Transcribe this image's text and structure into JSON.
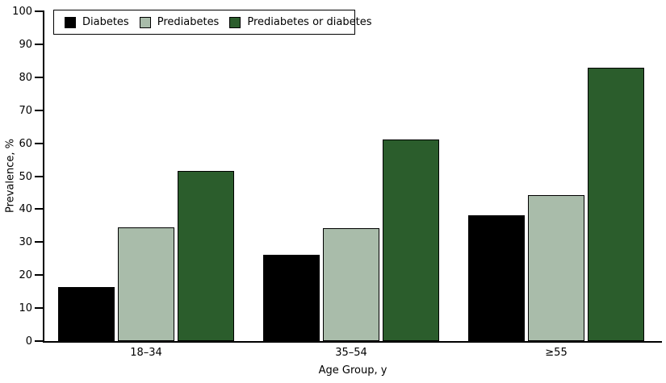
{
  "chart_data": {
    "type": "bar",
    "title": "",
    "xlabel": "Age Group, y",
    "ylabel": "Prevalence, %",
    "ylim": [
      0,
      100
    ],
    "yticks": [
      0,
      10,
      20,
      30,
      40,
      50,
      60,
      70,
      80,
      90,
      100
    ],
    "categories": [
      "18–34",
      "35–54",
      "≥55"
    ],
    "series": [
      {
        "name": "Diabetes",
        "color": "#000000",
        "values": [
          16.5,
          26.2,
          38.1
        ]
      },
      {
        "name": "Prediabetes",
        "color": "#a9bcaa",
        "values": [
          34.5,
          34.2,
          44.2
        ]
      },
      {
        "name": "Prediabetes or diabetes",
        "color": "#2b5d2c",
        "values": [
          51.6,
          61.1,
          82.9
        ]
      }
    ],
    "legend_position": "top-left-inside",
    "grid": false,
    "bar_border_color": "#000000",
    "background_color": "#ffffff"
  }
}
